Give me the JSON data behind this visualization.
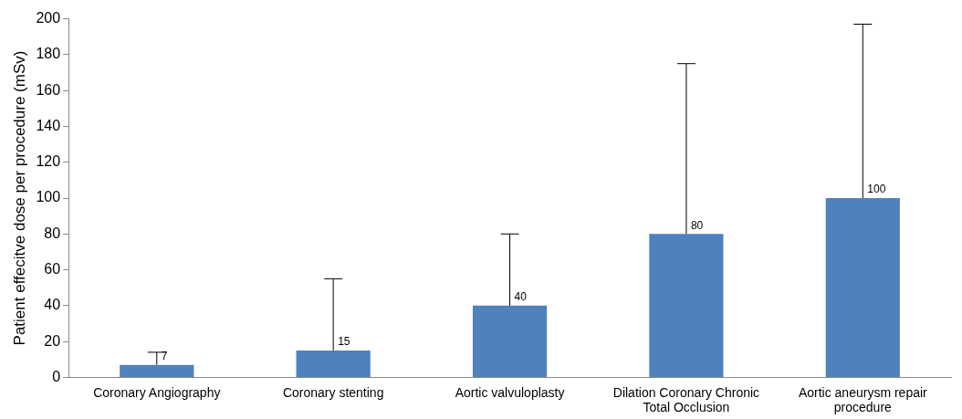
{
  "chart_data": {
    "type": "bar",
    "ylabel": "Patient effecitve dose per procedure (mSv)",
    "categories": [
      "Coronary Angiography",
      "Coronary stenting",
      "Aortic valvuloplasty",
      "Dilation Coronary Chronic Total Occlusion",
      "Aortic aneurysm repair procedure"
    ],
    "values": [
      7,
      15,
      40,
      80,
      100
    ],
    "color": "#4f81bd",
    "errors": [
      [
        7,
        14
      ],
      [
        15,
        55
      ],
      [
        40,
        80
      ],
      [
        80,
        175
      ],
      [
        100,
        197
      ]
    ],
    "ylim": [
      0,
      200
    ],
    "yticks": [
      0,
      20,
      40,
      60,
      80,
      100,
      120,
      140,
      160,
      180,
      200
    ],
    "grid": false,
    "legend": false,
    "data_labels": true
  }
}
